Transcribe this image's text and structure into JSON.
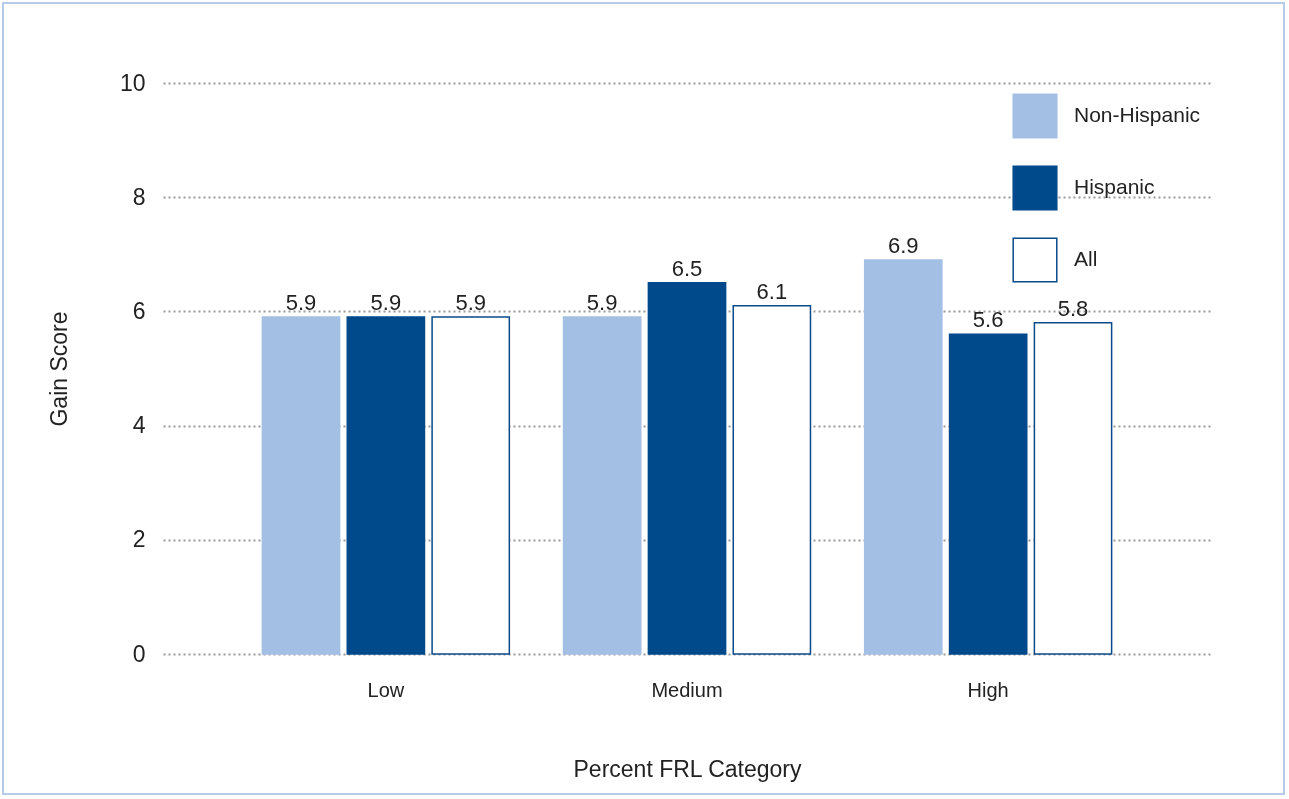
{
  "chart_data": {
    "type": "bar",
    "categories": [
      "Low",
      "Medium",
      "High"
    ],
    "series": [
      {
        "name": "Non-Hispanic",
        "color": "#a3c0e4",
        "values": [
          5.9,
          5.9,
          6.9
        ]
      },
      {
        "name": "Hispanic",
        "color": "#004a8c",
        "values": [
          5.9,
          6.5,
          5.6
        ]
      },
      {
        "name": "All",
        "color": "#ffffff",
        "values": [
          5.9,
          6.1,
          5.8
        ]
      }
    ],
    "xlabel": "Percent FRL Category",
    "ylabel": "Gain Score",
    "ylim": [
      0,
      10
    ],
    "yticks": [
      0,
      2,
      4,
      6,
      8,
      10
    ],
    "grid": "y",
    "legend": "top right",
    "data_labels": true
  }
}
